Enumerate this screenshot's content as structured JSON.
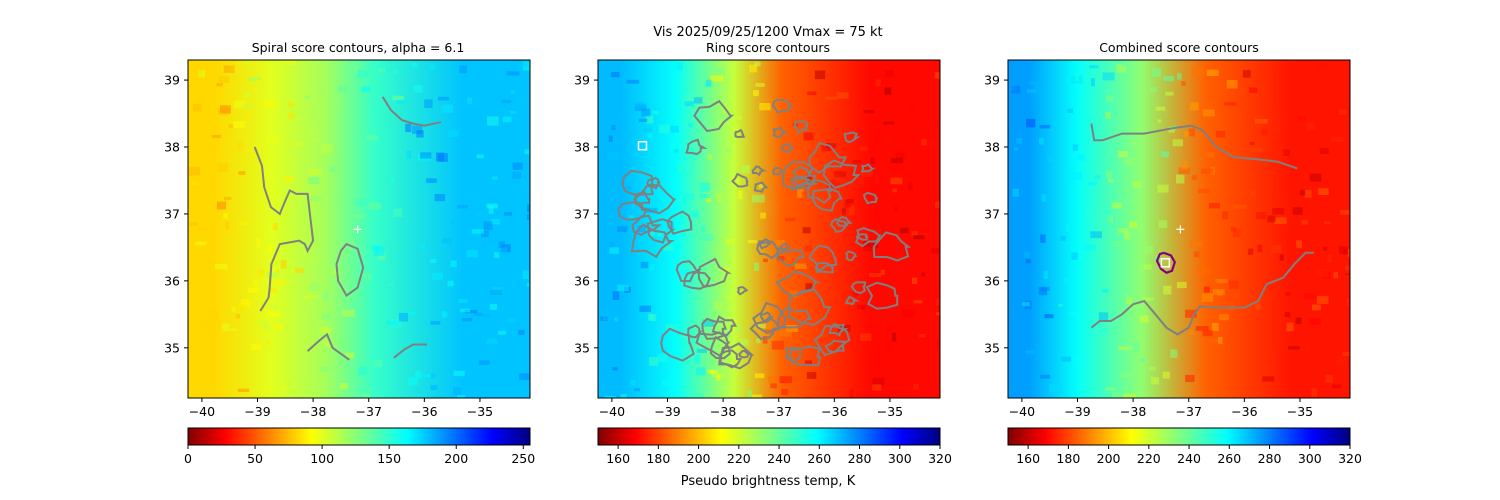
{
  "figure": {
    "suptitle_line1": "Vis  2025/09/25/1200    Vmax = 75 kt"
  },
  "chart_data": [
    {
      "type": "heatmap",
      "title": "Spiral score contours, alpha =  6.1",
      "xlabel": "",
      "ylabel": "",
      "xlim": [
        -40.25,
        -34.1
      ],
      "ylim": [
        34.25,
        39.3
      ],
      "xticks": [
        -40,
        -39,
        -38,
        -37,
        -36,
        -35
      ],
      "yticks": [
        35,
        36,
        37,
        38,
        39
      ],
      "colormap": "jet_r",
      "clim": [
        0,
        255
      ],
      "colorbar_ticks": [
        0,
        50,
        100,
        150,
        200,
        250
      ],
      "colorbar_label": "",
      "field_zones": [
        {
          "lon_to": -39.3,
          "value": 82
        },
        {
          "lon_to": -38.2,
          "value": 100
        },
        {
          "lon_to": -37.3,
          "value": 118
        },
        {
          "lon_to": -36.5,
          "value": 148
        },
        {
          "lon_to": -34.1,
          "value": 178
        }
      ],
      "center_marker": {
        "lon": -37.2,
        "lat": 36.77
      },
      "contour_color": "#808080",
      "contours": [
        [
          [
            -36.75,
            38.75
          ],
          [
            -36.6,
            38.55
          ],
          [
            -36.4,
            38.4
          ],
          [
            -36.2,
            38.35
          ],
          [
            -36.0,
            38.32
          ],
          [
            -35.7,
            38.37
          ]
        ],
        [
          [
            -39.05,
            38.0
          ],
          [
            -38.92,
            37.72
          ],
          [
            -38.88,
            37.4
          ],
          [
            -38.76,
            37.1
          ],
          [
            -38.6,
            37.0
          ],
          [
            -38.5,
            37.2
          ],
          [
            -38.42,
            37.35
          ],
          [
            -38.3,
            37.3
          ],
          [
            -38.1,
            37.3
          ],
          [
            -38.05,
            36.95
          ],
          [
            -38.0,
            36.6
          ],
          [
            -38.1,
            36.45
          ],
          [
            -38.15,
            36.55
          ],
          [
            -38.25,
            36.6
          ],
          [
            -38.6,
            36.55
          ],
          [
            -38.75,
            36.25
          ],
          [
            -38.78,
            35.9
          ],
          [
            -38.8,
            35.75
          ],
          [
            -38.95,
            35.55
          ]
        ],
        [
          [
            -37.5,
            36.45
          ],
          [
            -37.4,
            36.55
          ],
          [
            -37.2,
            36.48
          ],
          [
            -37.1,
            36.2
          ],
          [
            -37.2,
            35.9
          ],
          [
            -37.4,
            35.78
          ],
          [
            -37.55,
            36.0
          ],
          [
            -37.58,
            36.25
          ],
          [
            -37.5,
            36.45
          ]
        ],
        [
          [
            -38.1,
            34.95
          ],
          [
            -37.9,
            35.1
          ],
          [
            -37.75,
            35.2
          ],
          [
            -37.65,
            35.0
          ],
          [
            -37.35,
            34.82
          ]
        ],
        [
          [
            -36.55,
            34.85
          ],
          [
            -36.35,
            34.98
          ],
          [
            -36.2,
            35.05
          ],
          [
            -35.95,
            35.05
          ]
        ]
      ]
    },
    {
      "type": "heatmap",
      "title": "Ring score contours",
      "xlabel": "",
      "ylabel": "",
      "xlim": [
        -40.25,
        -34.1
      ],
      "ylim": [
        34.25,
        39.3
      ],
      "xticks": [
        -40,
        -39,
        -38,
        -37,
        -36,
        -35
      ],
      "yticks": [
        35,
        36,
        37,
        38,
        39
      ],
      "colormap": "jet_r",
      "clim": [
        150,
        320
      ],
      "colorbar_ticks": [
        160,
        180,
        200,
        220,
        240,
        260,
        280,
        300,
        320
      ],
      "colorbar_label": "Pseudo brightness temp, K",
      "field_zones": [
        {
          "lon_to": -39.4,
          "value": 270
        },
        {
          "lon_to": -38.3,
          "value": 258
        },
        {
          "lon_to": -37.3,
          "value": 222
        },
        {
          "lon_to": -36.6,
          "value": 185
        },
        {
          "lon_to": -34.1,
          "value": 170
        }
      ],
      "center_marker": {
        "lon": -39.45,
        "lat": 38.02
      },
      "contour_color": "#808080",
      "contours": []
    },
    {
      "type": "heatmap",
      "title": "Combined score contours",
      "xlabel": "",
      "ylabel": "",
      "xlim": [
        -40.25,
        -34.1
      ],
      "ylim": [
        34.25,
        39.3
      ],
      "xticks": [
        -40,
        -39,
        -38,
        -37,
        -36,
        -35
      ],
      "yticks": [
        35,
        36,
        37,
        38,
        39
      ],
      "colormap": "jet_r",
      "clim": [
        150,
        320
      ],
      "colorbar_ticks": [
        160,
        180,
        200,
        220,
        240,
        260,
        280,
        300,
        320
      ],
      "colorbar_label": "",
      "field_zones": [
        {
          "lon_to": -39.5,
          "value": 275
        },
        {
          "lon_to": -38.5,
          "value": 258
        },
        {
          "lon_to": -37.2,
          "value": 232
        },
        {
          "lon_to": -36.2,
          "value": 185
        },
        {
          "lon_to": -34.1,
          "value": 172
        }
      ],
      "center_marker": {
        "lon": -37.15,
        "lat": 36.77
      },
      "contour_color": "#808080",
      "contours": [
        [
          [
            -38.75,
            38.35
          ],
          [
            -38.7,
            38.1
          ],
          [
            -38.55,
            38.1
          ],
          [
            -38.2,
            38.2
          ],
          [
            -37.8,
            38.2
          ],
          [
            -37.3,
            38.28
          ],
          [
            -36.95,
            38.32
          ],
          [
            -36.75,
            38.25
          ],
          [
            -36.5,
            38.0
          ],
          [
            -36.2,
            37.85
          ],
          [
            -35.8,
            37.82
          ],
          [
            -35.4,
            37.78
          ],
          [
            -35.05,
            37.68
          ]
        ],
        [
          [
            -38.75,
            35.3
          ],
          [
            -38.6,
            35.4
          ],
          [
            -38.4,
            35.4
          ],
          [
            -38.2,
            35.5
          ],
          [
            -38.0,
            35.65
          ],
          [
            -37.8,
            35.7
          ],
          [
            -37.6,
            35.5
          ],
          [
            -37.4,
            35.3
          ],
          [
            -37.2,
            35.2
          ],
          [
            -37.0,
            35.3
          ],
          [
            -36.9,
            35.5
          ],
          [
            -36.8,
            35.62
          ],
          [
            -36.6,
            35.6
          ],
          [
            -36.3,
            35.6
          ],
          [
            -36.0,
            35.6
          ],
          [
            -35.75,
            35.7
          ],
          [
            -35.6,
            35.95
          ],
          [
            -35.45,
            36.0
          ],
          [
            -35.3,
            36.05
          ],
          [
            -35.1,
            36.25
          ],
          [
            -34.9,
            36.42
          ],
          [
            -34.75,
            36.42
          ]
        ]
      ],
      "highlight_contours": [
        {
          "color": "#800080",
          "points": [
            [
              -37.45,
              36.42
            ],
            [
              -37.32,
              36.38
            ],
            [
              -37.25,
              36.28
            ],
            [
              -37.3,
              36.15
            ],
            [
              -37.4,
              36.12
            ],
            [
              -37.5,
              36.18
            ],
            [
              -37.57,
              36.3
            ],
            [
              -37.52,
              36.4
            ],
            [
              -37.45,
              36.42
            ]
          ]
        }
      ],
      "box_marker": {
        "lon": -37.42,
        "lat": 36.27
      }
    }
  ]
}
